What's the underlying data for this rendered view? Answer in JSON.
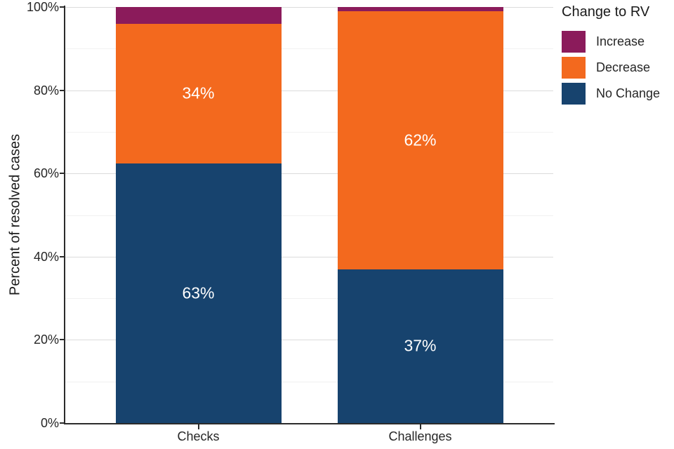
{
  "chart_data": {
    "type": "bar",
    "stacked": true,
    "percent_scale": true,
    "categories": [
      "Checks",
      "Challenges"
    ],
    "series": [
      {
        "name": "No Change",
        "color": "#17436E",
        "values": [
          63,
          37
        ],
        "data_labels": [
          "63%",
          "37%"
        ]
      },
      {
        "name": "Decrease",
        "color": "#F3691E",
        "values": [
          34,
          62
        ],
        "data_labels": [
          "34%",
          "62%"
        ]
      },
      {
        "name": "Increase",
        "color": "#8B1B5B",
        "values": [
          4,
          1
        ],
        "data_labels": [
          "",
          ""
        ]
      }
    ],
    "xlabel": "",
    "ylabel": "Percent of resolved cases",
    "ylim": [
      0,
      100
    ],
    "yticks": [
      {
        "value": 0,
        "label": "0%"
      },
      {
        "value": 20,
        "label": "20%"
      },
      {
        "value": 40,
        "label": "40%"
      },
      {
        "value": 60,
        "label": "60%"
      },
      {
        "value": 80,
        "label": "80%"
      },
      {
        "value": 100,
        "label": "100%"
      }
    ],
    "grid": {
      "minor_every": 10,
      "major_every": 20,
      "minor_color": "#F1F1F1",
      "major_color": "#DBDBDB"
    },
    "legend": {
      "title": "Change to RV",
      "position": "right",
      "items": [
        {
          "label": "Increase",
          "color": "#8B1B5B"
        },
        {
          "label": "Decrease",
          "color": "#F3691E"
        },
        {
          "label": "No Change",
          "color": "#17436E"
        }
      ]
    }
  }
}
